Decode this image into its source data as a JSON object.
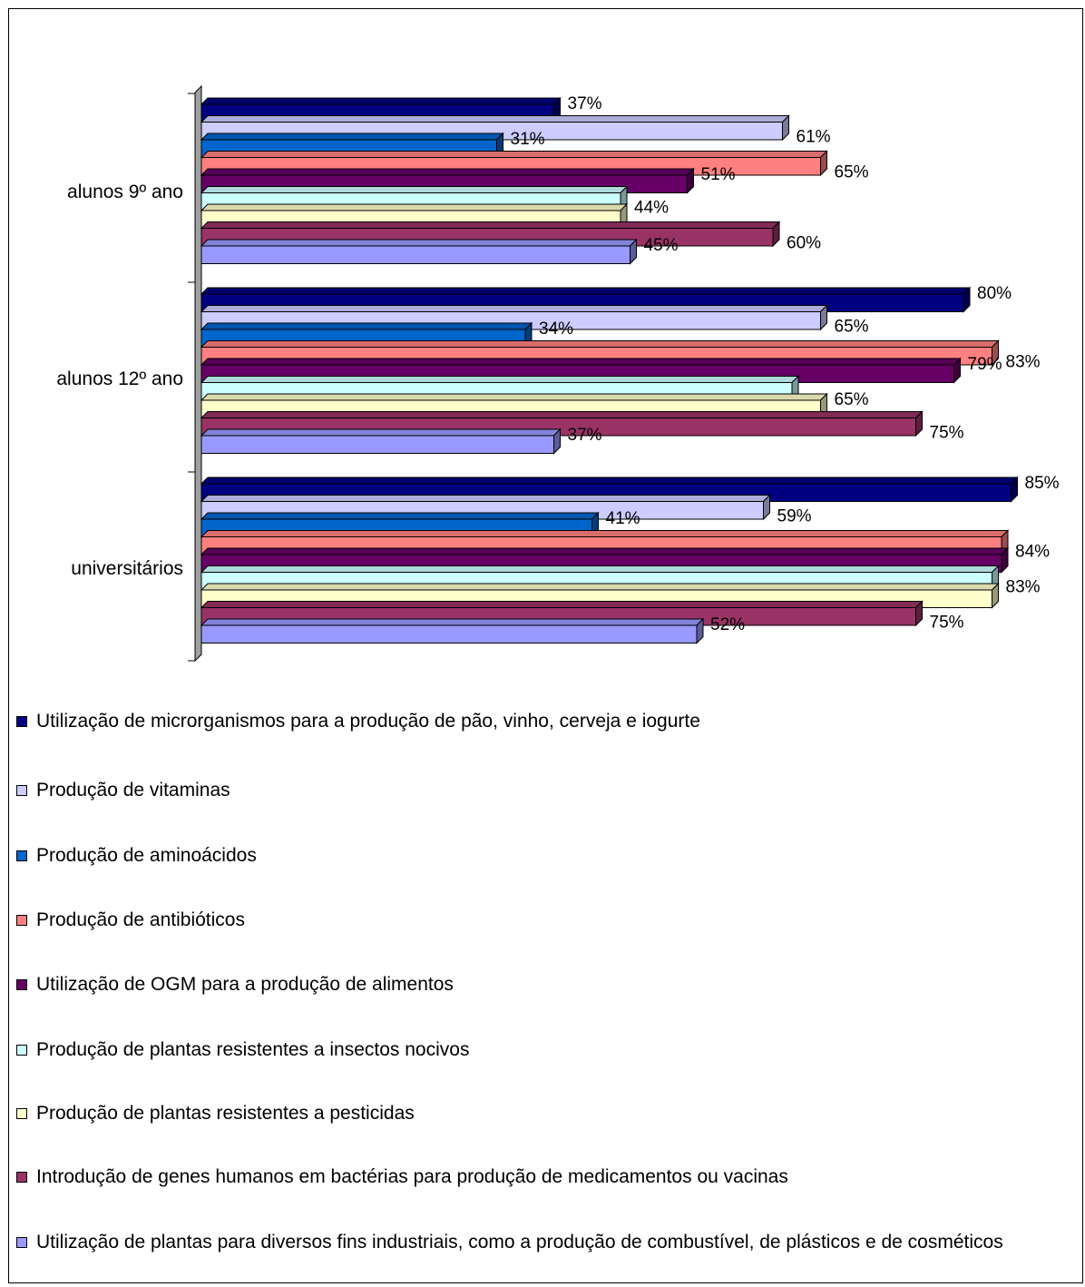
{
  "chart_data": {
    "type": "bar",
    "orientation": "horizontal",
    "three_d": true,
    "categories": [
      "alunos 9º ano",
      "alunos 12º ano",
      "universitários"
    ],
    "xlim": [
      0,
      85
    ],
    "legend_position": "bottom",
    "series": [
      {
        "name": "Utilização de microrganismos para a produção de pão, vinho, cerveja e iogurte",
        "color": "#000080",
        "values": [
          37,
          80,
          85
        ],
        "labels": [
          "37%",
          "80%",
          "85%"
        ]
      },
      {
        "name": "Produção de vitaminas",
        "color": "#CCCCFF",
        "values": [
          61,
          65,
          59
        ],
        "labels": [
          "61%",
          "65%",
          "59%"
        ]
      },
      {
        "name": "Produção de aminoácidos",
        "color": "#0066CC",
        "values": [
          31,
          34,
          41
        ],
        "labels": [
          "31%",
          "34%",
          "41%"
        ]
      },
      {
        "name": "Produção de antibióticos",
        "color": "#FF8080",
        "values": [
          65,
          83,
          84
        ],
        "labels": [
          "65%",
          "83%",
          "84%"
        ]
      },
      {
        "name": "Utilização de OGM para a produção de alimentos",
        "color": "#660066",
        "values": [
          51,
          79,
          84
        ],
        "labels": [
          "51%",
          "79%",
          ""
        ]
      },
      {
        "name": "Produção de plantas resistentes a insectos nocivos",
        "color": "#CCFFFF",
        "values": [
          44,
          62,
          83
        ],
        "labels": [
          "44%",
          "",
          "83%"
        ]
      },
      {
        "name": "Produção de plantas resistentes a pesticidas",
        "color": "#FFFFCC",
        "values": [
          44,
          65,
          83
        ],
        "labels": [
          "",
          "65%",
          ""
        ]
      },
      {
        "name": "Introdução de genes humanos em bactérias para produção de medicamentos ou vacinas",
        "color": "#993366",
        "values": [
          60,
          75,
          75
        ],
        "labels": [
          "60%",
          "75%",
          "75%"
        ]
      },
      {
        "name": "Utilização de plantas para diversos fins industriais, como a produção de combustível, de plásticos e de cosméticos",
        "color": "#9999FF",
        "values": [
          45,
          37,
          52
        ],
        "labels": [
          "45%",
          "37%",
          "52%"
        ]
      }
    ]
  },
  "legend": {
    "items": [
      {
        "label": "Utilização de microrganismos para a produção de pão, vinho, cerveja e iogurte",
        "color": "#000080"
      },
      {
        "label": "Produção de vitaminas",
        "color": "#CCCCFF"
      },
      {
        "label": "Produção de aminoácidos",
        "color": "#0066CC"
      },
      {
        "label": "Produção de antibióticos",
        "color": "#FF8080"
      },
      {
        "label": "Utilização de OGM para a produção de alimentos",
        "color": "#660066"
      },
      {
        "label": "Produção de plantas resistentes a insectos nocivos",
        "color": "#CCFFFF"
      },
      {
        "label": "Produção de plantas resistentes a pesticidas",
        "color": "#FFFFCC"
      },
      {
        "label": "Introdução de genes humanos em bactérias para produção de medicamentos ou vacinas",
        "color": "#993366"
      },
      {
        "label": "Utilização de plantas para diversos fins industriais, como a produção de combustível, de plásticos e de cosméticos",
        "color": "#9999FF"
      }
    ]
  }
}
